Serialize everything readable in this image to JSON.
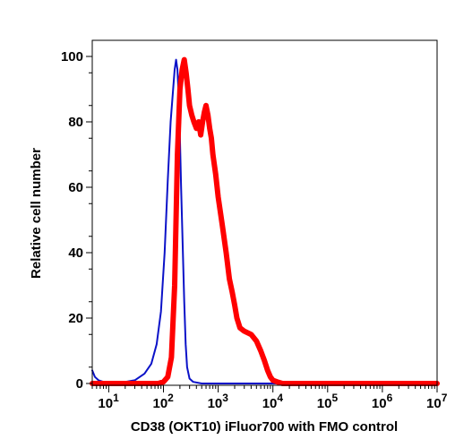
{
  "chart_data": {
    "type": "line",
    "xlabel": "CD38 (OKT10) iFluor700 with FMO control",
    "ylabel": "Relative cell number",
    "x_scale": "log",
    "xlim": [
      5,
      10000000
    ],
    "ylim": [
      0,
      100
    ],
    "y_ticks": [
      0,
      20,
      40,
      60,
      80,
      100
    ],
    "x_ticks": [
      {
        "base": "10",
        "exp": "1"
      },
      {
        "base": "10",
        "exp": "2"
      },
      {
        "base": "10",
        "exp": "3"
      },
      {
        "base": "10",
        "exp": "4"
      },
      {
        "base": "10",
        "exp": "5"
      },
      {
        "base": "10",
        "exp": "6"
      },
      {
        "base": "10",
        "exp": "7"
      }
    ],
    "grid": false,
    "series": [
      {
        "color": "#0b12c8",
        "line": "thin",
        "x": [
          5,
          5.6,
          6.5,
          8,
          10,
          14,
          20,
          30,
          45,
          60,
          75,
          90,
          105,
          120,
          135,
          150,
          160,
          170,
          180,
          190,
          200,
          210,
          225,
          240,
          255,
          270,
          300,
          350,
          500,
          1000,
          10000,
          10000000
        ],
        "y": [
          4,
          2,
          1,
          0.5,
          0.5,
          0.5,
          0.5,
          1,
          3,
          6,
          12,
          22,
          40,
          62,
          80,
          90,
          96,
          99,
          96,
          88,
          75,
          60,
          42,
          25,
          12,
          5,
          1.5,
          0.5,
          0,
          0,
          0,
          0
        ]
      },
      {
        "color": "#ff0000",
        "line": "thick",
        "x": [
          5,
          20,
          50,
          80,
          100,
          120,
          140,
          160,
          180,
          200,
          220,
          240,
          260,
          280,
          300,
          330,
          360,
          400,
          440,
          480,
          520,
          560,
          600,
          650,
          700,
          750,
          800,
          900,
          1000,
          1200,
          1400,
          1600,
          1800,
          2000,
          2200,
          2500,
          3000,
          4000,
          5000,
          6000,
          7000,
          8000,
          9000,
          10000,
          12000,
          15000,
          20000,
          30000,
          10000000
        ],
        "y": [
          0,
          0,
          0,
          0,
          0.5,
          2,
          8,
          30,
          70,
          90,
          96,
          99,
          95,
          90,
          85,
          82,
          80,
          78,
          80,
          76,
          80,
          83,
          85,
          82,
          78,
          75,
          70,
          64,
          57,
          48,
          40,
          32,
          28,
          24,
          20,
          17,
          16,
          15,
          13,
          10,
          7,
          4,
          2,
          1,
          0.5,
          0,
          0,
          0,
          0
        ]
      }
    ]
  }
}
